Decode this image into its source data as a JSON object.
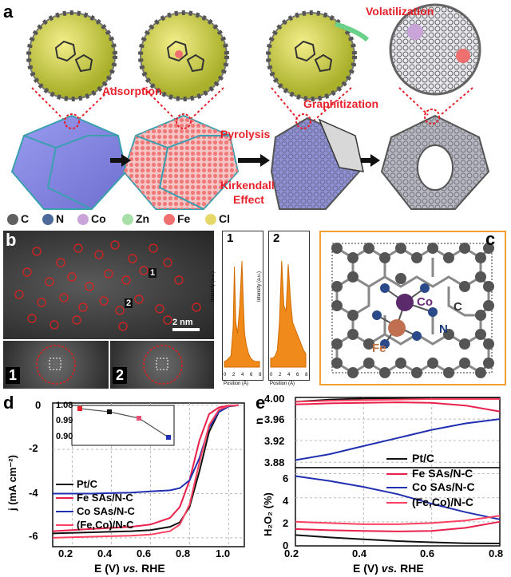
{
  "panel_a": {
    "label": "a",
    "annotations": {
      "volatilization": "Volatilization",
      "adsorption": "Adsorption",
      "graphitization": "Graphitization",
      "pyrolysis": "Pyrolysis",
      "kirkendall": "Kirkendall",
      "effect": "Effect"
    },
    "legend": [
      {
        "symbol": "C",
        "color": "#606060"
      },
      {
        "symbol": "N",
        "color": "#4d6a9a"
      },
      {
        "symbol": "Co",
        "color": "#c9a4d8"
      },
      {
        "symbol": "Zn",
        "color": "#a8dea8"
      },
      {
        "symbol": "Fe",
        "color": "#f07070"
      },
      {
        "symbol": "Cl",
        "color": "#e6d96a"
      }
    ]
  },
  "panel_b": {
    "label": "b",
    "scale_bar": "2 nm",
    "site_labels": [
      "1",
      "2"
    ],
    "profile_axis_y": "Intensity (a.u.)",
    "profile_axis_x": "Position (Å)",
    "profile_ticks": [
      "0",
      "2",
      "4",
      "6",
      "8"
    ],
    "profiles": [
      {
        "label": "1",
        "x": [
          0,
          0.5,
          1,
          1.5,
          2,
          2.3,
          2.6,
          3,
          3.5,
          4,
          4.3,
          4.6,
          5,
          5.5,
          6,
          6.5,
          7,
          7.5,
          8
        ],
        "y": [
          0.05,
          0.06,
          0.08,
          0.1,
          0.35,
          0.9,
          0.4,
          0.3,
          0.55,
          0.95,
          0.6,
          0.3,
          0.2,
          0.12,
          0.08,
          0.06,
          0.05,
          0.05,
          0.05
        ]
      },
      {
        "label": "2",
        "x": [
          0,
          0.5,
          1,
          1.5,
          2,
          2.5,
          3,
          3.5,
          4,
          4.5,
          5,
          5.5,
          6,
          6.5,
          7,
          7.5,
          8
        ],
        "y": [
          0.08,
          0.08,
          0.1,
          0.15,
          0.4,
          0.95,
          0.55,
          0.5,
          0.92,
          0.6,
          0.4,
          0.35,
          0.3,
          0.25,
          0.2,
          0.15,
          0.12
        ]
      }
    ]
  },
  "panel_c": {
    "label": "c",
    "atom_labels": {
      "co": "Co",
      "fe": "Fe",
      "c": "C",
      "n": "N"
    }
  },
  "panel_d": {
    "label": "d",
    "chart_data": {
      "type": "line",
      "xlabel_e": "E (V) ",
      "xlabel_vs": "vs.",
      "xlabel_rhe": " RHE",
      "ylabel": "j (mA cm⁻²)",
      "xlim": [
        0.1,
        1.08
      ],
      "ylim": [
        -6.4,
        0.1
      ],
      "xticks": [
        "0.2",
        "0.4",
        "0.6",
        "0.8",
        "1.0"
      ],
      "yticks": [
        "0",
        "-2",
        "-4",
        "-6"
      ],
      "series": [
        {
          "name": "Pt/C",
          "color": "#111111",
          "x": [
            0.1,
            0.3,
            0.5,
            0.6,
            0.7,
            0.75,
            0.8,
            0.85,
            0.9,
            0.95,
            1.0,
            1.05
          ],
          "y": [
            -5.8,
            -5.75,
            -5.7,
            -5.65,
            -5.5,
            -5.3,
            -4.6,
            -3.0,
            -1.2,
            -0.3,
            -0.05,
            0
          ]
        },
        {
          "name": "Fe SAs/N-C",
          "color": "#e8204a",
          "x": [
            0.1,
            0.3,
            0.5,
            0.6,
            0.7,
            0.75,
            0.8,
            0.85,
            0.9,
            0.95,
            1.0,
            1.05
          ],
          "y": [
            -5.7,
            -5.6,
            -5.5,
            -5.4,
            -5.1,
            -4.6,
            -3.4,
            -1.6,
            -0.4,
            -0.1,
            -0.02,
            0
          ]
        },
        {
          "name": "Co SAs/N-C",
          "color": "#2030b0",
          "x": [
            0.1,
            0.3,
            0.5,
            0.6,
            0.7,
            0.75,
            0.8,
            0.85,
            0.9,
            0.95,
            1.0,
            1.05
          ],
          "y": [
            -4.0,
            -4.0,
            -3.95,
            -3.9,
            -3.85,
            -3.75,
            -3.4,
            -2.4,
            -1.0,
            -0.3,
            -0.05,
            0
          ]
        },
        {
          "name": "(Fe,Co)/N-C",
          "color": "#ff4060",
          "x": [
            0.1,
            0.3,
            0.5,
            0.6,
            0.7,
            0.75,
            0.8,
            0.85,
            0.9,
            0.95,
            1.0,
            1.05
          ],
          "y": [
            -6.0,
            -5.95,
            -5.9,
            -5.85,
            -5.7,
            -5.4,
            -4.5,
            -2.6,
            -0.9,
            -0.2,
            -0.03,
            0
          ]
        }
      ],
      "inset": {
        "yticks": [
          "1.08",
          "0.99",
          "0.90"
        ],
        "ylim": [
          0.85,
          1.1
        ],
        "points": [
          {
            "y": 1.08,
            "color": "#e8202a"
          },
          {
            "y": 1.06,
            "color": "#111111"
          },
          {
            "y": 1.02,
            "color": "#e8507a"
          },
          {
            "y": 0.9,
            "color": "#2030b0"
          }
        ]
      }
    }
  },
  "panel_e": {
    "label": "e",
    "chart_data": [
      {
        "type": "line",
        "ylabel": "n",
        "xlim": [
          0.2,
          0.8
        ],
        "ylim": [
          3.87,
          4.0
        ],
        "yticks": [
          "4.00",
          "3.96",
          "3.92",
          "3.88"
        ],
        "series": [
          {
            "name": "Pt/C",
            "color": "#111111",
            "x": [
              0.2,
              0.3,
              0.4,
              0.5,
              0.6,
              0.7,
              0.8
            ],
            "y": [
              3.992,
              3.996,
              3.998,
              3.998,
              3.998,
              3.998,
              3.998
            ]
          },
          {
            "name": "Fe SAs/N-C",
            "color": "#e8204a",
            "x": [
              0.2,
              0.3,
              0.4,
              0.5,
              0.6,
              0.7,
              0.8
            ],
            "y": [
              3.987,
              3.989,
              3.99,
              3.991,
              3.99,
              3.985,
              3.974
            ]
          },
          {
            "name": "Co SAs/N-C",
            "color": "#2030b0",
            "x": [
              0.2,
              0.3,
              0.4,
              0.5,
              0.6,
              0.7,
              0.8
            ],
            "y": [
              3.884,
              3.895,
              3.91,
              3.925,
              3.94,
              3.952,
              3.96
            ]
          },
          {
            "name": "(Fe,Co)/N-C",
            "color": "#ff4060",
            "x": [
              0.2,
              0.3,
              0.4,
              0.5,
              0.6,
              0.7,
              0.8
            ],
            "y": [
              3.992,
              3.994,
              3.995,
              3.996,
              3.997,
              3.997,
              3.997
            ]
          }
        ]
      },
      {
        "type": "line",
        "ylabel": "H₂O₂ (%)",
        "xlabel_e": "E (V) ",
        "xlabel_vs": "vs.",
        "xlabel_rhe": " RHE",
        "xlim": [
          0.2,
          0.8
        ],
        "ylim": [
          0,
          6.5
        ],
        "xticks": [
          "0.2",
          "0.4",
          "0.6",
          "0.8"
        ],
        "yticks": [
          "6",
          "4",
          "2",
          "0"
        ],
        "series": [
          {
            "name": "Pt/C",
            "color": "#111111",
            "x": [
              0.2,
              0.3,
              0.4,
              0.5,
              0.6,
              0.7,
              0.8
            ],
            "y": [
              0.9,
              0.7,
              0.55,
              0.4,
              0.3,
              0.22,
              0.2
            ]
          },
          {
            "name": "Fe SAs/N-C",
            "color": "#e8204a",
            "x": [
              0.2,
              0.3,
              0.4,
              0.5,
              0.6,
              0.7,
              0.8
            ],
            "y": [
              1.4,
              1.3,
              1.25,
              1.2,
              1.25,
              1.5,
              2.0
            ]
          },
          {
            "name": "Co SAs/N-C",
            "color": "#2030b0",
            "x": [
              0.2,
              0.3,
              0.4,
              0.5,
              0.6,
              0.7,
              0.8
            ],
            "y": [
              5.8,
              5.4,
              4.9,
              4.3,
              3.5,
              2.8,
              2.2
            ]
          },
          {
            "name": "(Fe,Co)/N-C",
            "color": "#ff4060",
            "x": [
              0.2,
              0.3,
              0.4,
              0.5,
              0.6,
              0.7,
              0.8
            ],
            "y": [
              2.0,
              1.9,
              1.8,
              1.8,
              1.9,
              2.1,
              2.5
            ]
          }
        ]
      }
    ]
  }
}
